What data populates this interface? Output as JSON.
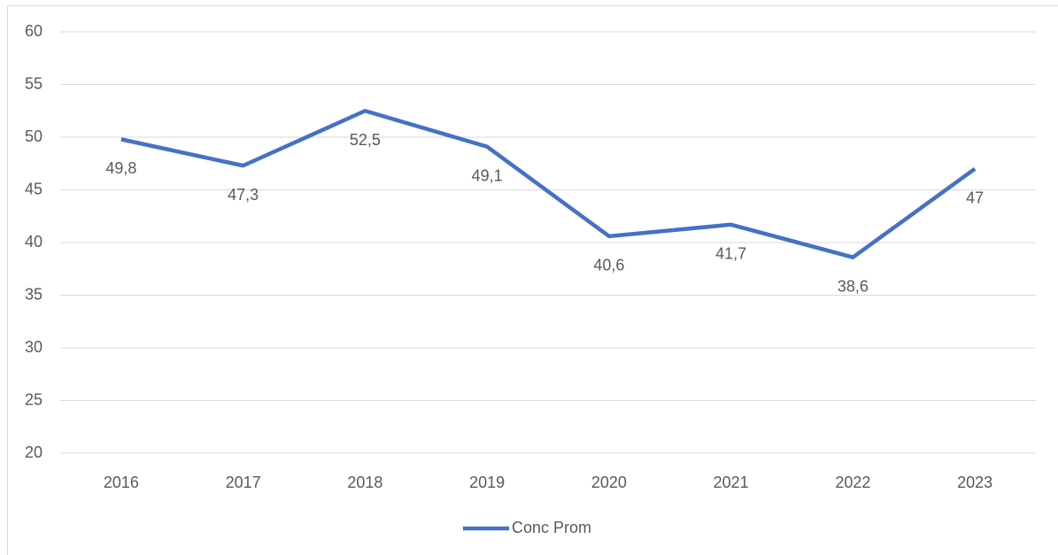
{
  "chart_data": {
    "type": "line",
    "categories": [
      "2016",
      "2017",
      "2018",
      "2019",
      "2020",
      "2021",
      "2022",
      "2023"
    ],
    "series": [
      {
        "name": "Conc Prom",
        "color": "#4472c4",
        "values": [
          49.8,
          47.3,
          52.5,
          49.1,
          40.6,
          41.7,
          38.6,
          47
        ],
        "value_labels": [
          "49,8",
          "47,3",
          "52,5",
          "49,1",
          "40,6",
          "41,7",
          "38,6",
          "47"
        ]
      }
    ],
    "ylim": [
      20,
      60
    ],
    "yticks": [
      20,
      25,
      30,
      35,
      40,
      45,
      50,
      55,
      60
    ],
    "grid": true,
    "legend": "bottom"
  }
}
